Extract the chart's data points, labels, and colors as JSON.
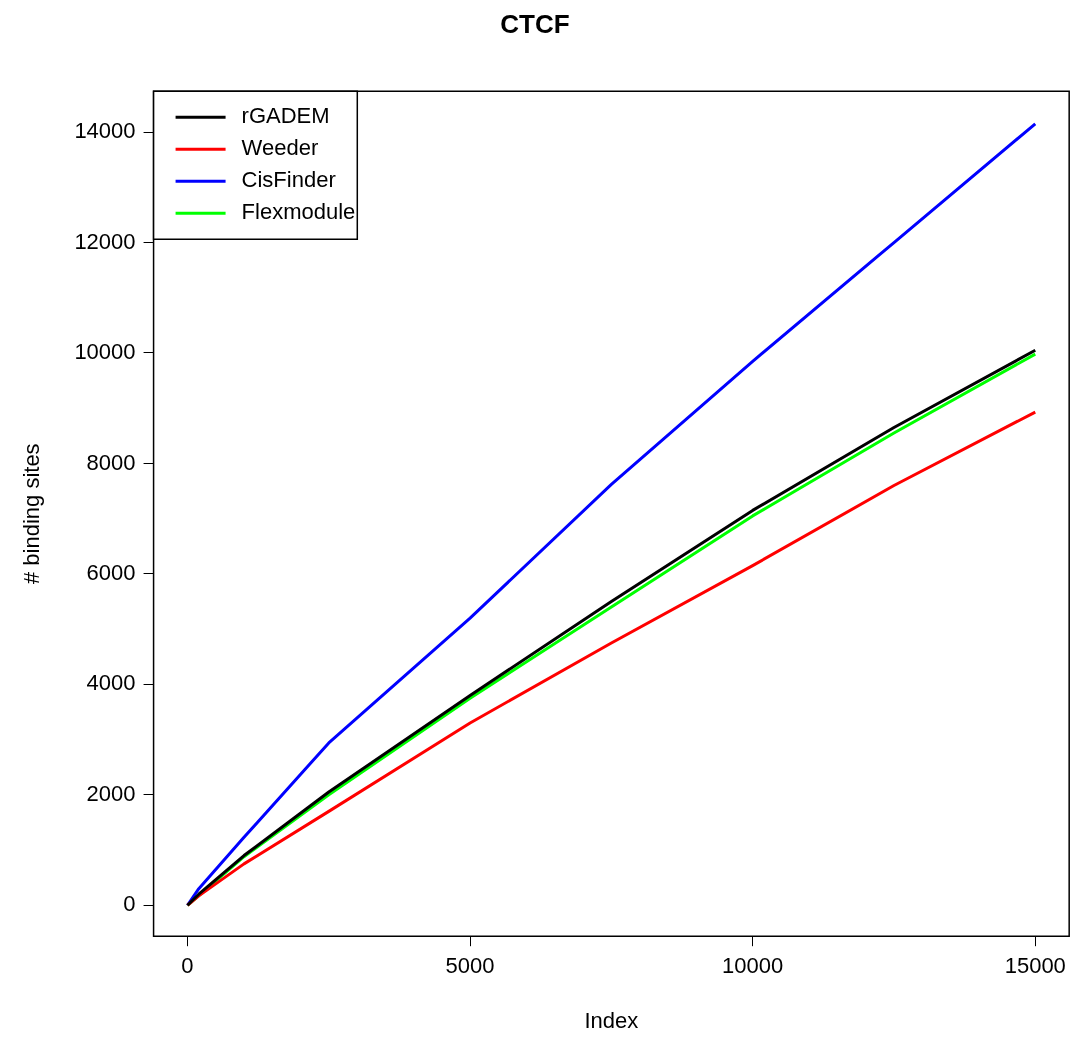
{
  "chart_data": {
    "type": "line",
    "title": "CTCF",
    "xlabel": "Index",
    "ylabel": "# binding sites",
    "xlim": [
      -600,
      15600
    ],
    "ylim": [
      -560,
      14740
    ],
    "xticks": [
      0,
      5000,
      10000,
      15000
    ],
    "yticks": [
      0,
      2000,
      4000,
      6000,
      8000,
      10000,
      12000,
      14000
    ],
    "grid": false,
    "legend": "top left",
    "marker": "none",
    "line_style": "solid",
    "x": [
      0,
      200,
      1000,
      2500,
      5000,
      7500,
      10000,
      12500,
      15000
    ],
    "series": [
      {
        "name": "rGADEM",
        "color": "#000000",
        "values": [
          0,
          200,
          900,
          2050,
          3800,
          5500,
          7150,
          8650,
          10050
        ]
      },
      {
        "name": "Weeder",
        "color": "#ff0000",
        "values": [
          0,
          170,
          750,
          1700,
          3300,
          4750,
          6150,
          7600,
          8930
        ]
      },
      {
        "name": "CisFinder",
        "color": "#0000ff",
        "values": [
          0,
          300,
          1230,
          2940,
          5200,
          7620,
          9850,
          12000,
          14150
        ]
      },
      {
        "name": "Flexmodule",
        "color": "#00ff00",
        "values": [
          0,
          null,
          880,
          2000,
          3750,
          5400,
          7050,
          8550,
          9980
        ]
      }
    ]
  }
}
